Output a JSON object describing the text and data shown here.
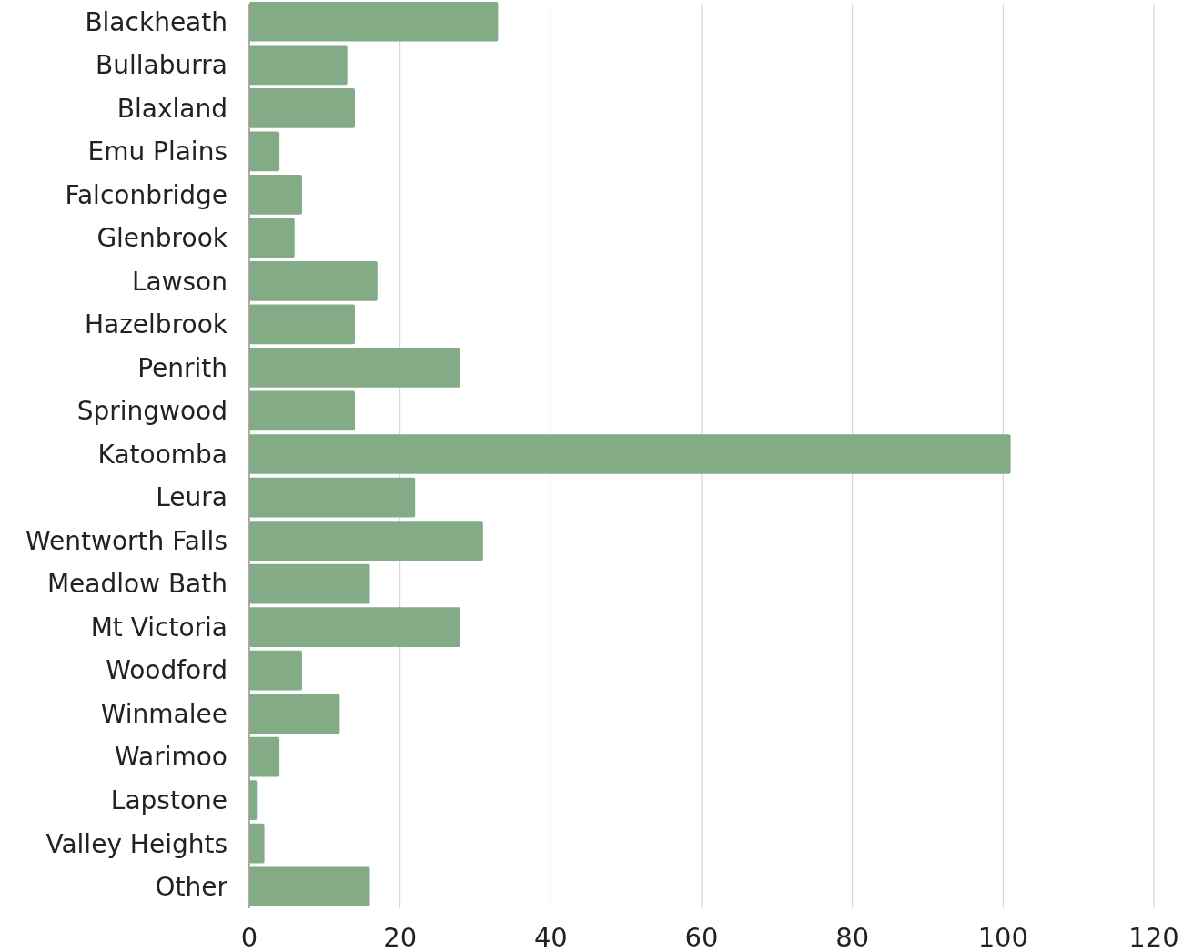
{
  "chart_data": {
    "type": "bar",
    "orientation": "horizontal",
    "categories": [
      "Blackheath",
      "Bullaburra",
      "Blaxland",
      "Emu Plains",
      "Falconbridge",
      "Glenbrook",
      "Lawson",
      "Hazelbrook",
      "Penrith",
      "Springwood",
      "Katoomba",
      "Leura",
      "Wentworth Falls",
      "Meadlow Bath",
      "Mt Victoria",
      "Woodford",
      "Winmalee",
      "Warimoo",
      "Lapstone",
      "Valley Heights",
      "Other"
    ],
    "values": [
      33,
      13,
      14,
      4,
      7,
      6,
      17,
      14,
      28,
      14,
      101,
      22,
      31,
      16,
      28,
      7,
      12,
      4,
      1,
      2,
      16
    ],
    "color": "#82ab86",
    "xlim": [
      0,
      120
    ],
    "xticks": [
      0,
      20,
      40,
      60,
      80,
      100,
      120
    ],
    "grid": "x"
  }
}
